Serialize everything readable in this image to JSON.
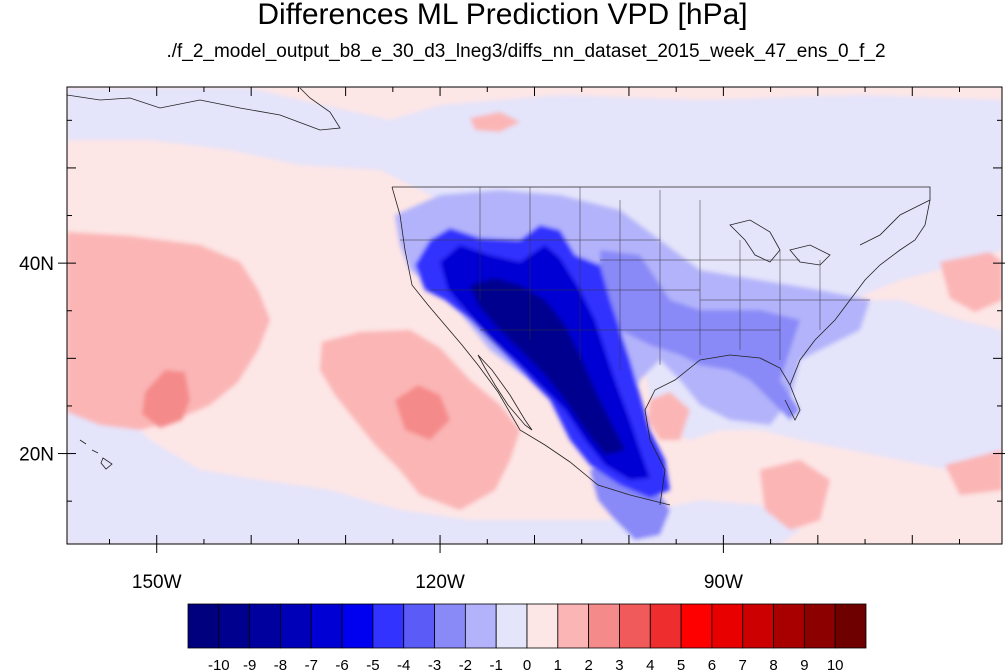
{
  "title": "Differences ML Prediction VPD [hPa]",
  "subtitle": "./f_2_model_output_b8_e_30_d3_lneg3/diffs_nn_dataset_2015_week_47_ens_0_f_2",
  "map": {
    "projection": "cylindrical-equidistant",
    "lon_range": [
      -159.5,
      -60.5
    ],
    "lat_range": [
      10.5,
      58.5
    ],
    "lon_labels": [
      {
        "value": -150,
        "text": "150W"
      },
      {
        "value": -120,
        "text": "120W"
      },
      {
        "value": -90,
        "text": "90W"
      }
    ],
    "lat_labels": [
      {
        "value": 40,
        "text": "40N"
      },
      {
        "value": 20,
        "text": "20N"
      }
    ],
    "background_color": "#fde6e6"
  },
  "colorbar": {
    "orientation": "horizontal",
    "labels": [
      "-10",
      "-9",
      "-8",
      "-7",
      "-6",
      "-5",
      "-4",
      "-3",
      "-2",
      "-1",
      "0",
      "1",
      "2",
      "3",
      "4",
      "5",
      "6",
      "7",
      "8",
      "9",
      "10"
    ],
    "colors": [
      "#00007f",
      "#00008f",
      "#00009f",
      "#0000b8",
      "#0000d4",
      "#0000f0",
      "#3333ff",
      "#5b5bf7",
      "#8989f8",
      "#b3b3fb",
      "#e4e4fb",
      "#fde6e6",
      "#fbb5b5",
      "#f58a8a",
      "#f05a5a",
      "#ee2e2e",
      "#ff0000",
      "#e80000",
      "#cc0000",
      "#a80000",
      "#8c0000",
      "#6e0000"
    ]
  }
}
